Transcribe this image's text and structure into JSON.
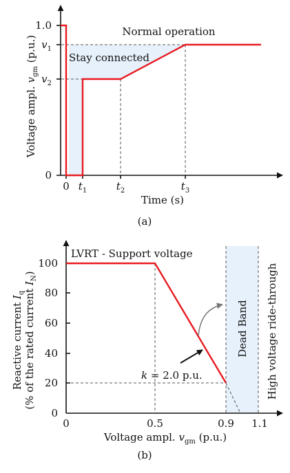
{
  "panel_a": {
    "caption": "(a)",
    "ylabel_text": "Voltage ampl. ",
    "ylabel_var": "v",
    "ylabel_sub": "gm",
    "ylabel_unit": " (p.u.)",
    "xlabel": "Time (s)",
    "y_ticks": [
      {
        "label": "1.0"
      },
      {
        "var": "v",
        "sub": "1"
      },
      {
        "var": "v",
        "sub": "2"
      },
      {
        "label": "0"
      }
    ],
    "x_ticks": [
      {
        "label": "0"
      },
      {
        "var": "t",
        "sub": "1"
      },
      {
        "var": "t",
        "sub": "2"
      },
      {
        "var": "t",
        "sub": "3"
      }
    ],
    "region_normal": "Normal operation",
    "region_stay": "Stay connected"
  },
  "panel_b": {
    "caption": "(b)",
    "ylabel_line1_text": "Reactive current ",
    "ylabel_line1_var": "I",
    "ylabel_line1_sub": "q",
    "ylabel_line2_text": "(% of the rated current ",
    "ylabel_line2_var": "I",
    "ylabel_line2_sub": "N",
    "ylabel_line2_end": ")",
    "xlabel_text": "Voltage ampl. ",
    "xlabel_var": "v",
    "xlabel_sub": "gm",
    "xlabel_unit": " (p.u.)",
    "y_ticks": [
      "100",
      "80",
      "60",
      "40",
      "20",
      "0"
    ],
    "x_ticks": [
      "0",
      "0.5",
      "0.9",
      "1.1"
    ],
    "title_lvrt": "LVRT - Support voltage",
    "label_deadband": "Dead Band",
    "label_hvrt": "High voltage ride-through",
    "slope_var": "k",
    "slope_text": " = 2.0 p.u."
  },
  "colors": {
    "curve": "#e8191f",
    "shade": "#e6f1fb",
    "axis": "#111111",
    "guide": "#555555"
  },
  "chart_data": {
    "type": "line",
    "x": [
      0,
      0.5,
      0.9
    ],
    "y": [
      100,
      100,
      20
    ],
    "xlim": [
      0,
      1.1
    ],
    "ylim": [
      0,
      100
    ],
    "slope_k": 2.0
  }
}
